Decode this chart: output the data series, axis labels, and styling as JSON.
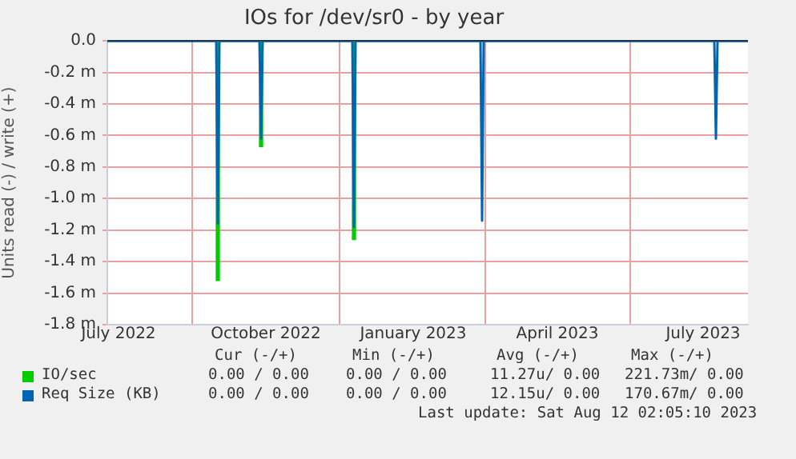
{
  "chart_data": {
    "type": "line",
    "title": "IOs for /dev/sr0 - by year",
    "ylabel": "Units read (-) / write (+)",
    "x": [
      "2022-06-24",
      "2022-08-31",
      "2022-09-01",
      "2022-09-02",
      "2022-09-27",
      "2022-09-28",
      "2022-09-29",
      "2022-11-24",
      "2022-11-25",
      "2022-11-26",
      "2023-02-12",
      "2023-02-13",
      "2023-02-14",
      "2023-07-08",
      "2023-07-09",
      "2023-07-10",
      "2023-07-29"
    ],
    "series": [
      {
        "name": "IO/sec",
        "type": "bar",
        "color": "#00cc00",
        "values": [
          null,
          null,
          -1.52,
          null,
          null,
          -0.67,
          null,
          null,
          -1.26,
          null,
          null,
          null,
          null,
          null,
          null,
          null,
          null
        ]
      },
      {
        "name": "Req Size (KB)",
        "color": "#0066b3",
        "values": [
          0,
          0,
          -1.16,
          0,
          0,
          -0.62,
          0,
          0,
          -1.18,
          0,
          0,
          -1.14,
          0,
          0,
          -0.62,
          0,
          0
        ]
      }
    ],
    "xlim": [
      "2022-06-24",
      "2023-07-29"
    ],
    "xticks": [
      {
        "value": "2022-07-01",
        "label": "July 2022"
      },
      {
        "value": "2022-10-01",
        "label": "October 2022"
      },
      {
        "value": "2023-01-01",
        "label": "January 2023"
      },
      {
        "value": "2023-04-01",
        "label": "April 2023"
      },
      {
        "value": "2023-07-01",
        "label": "July 2023"
      }
    ],
    "ylim": [
      -1.8,
      0
    ],
    "yticks": [
      {
        "value": -1.8,
        "label": "-1.8 m"
      },
      {
        "value": -1.6,
        "label": "-1.6 m"
      },
      {
        "value": -1.4,
        "label": "-1.4 m"
      },
      {
        "value": -1.2,
        "label": "-1.2 m"
      },
      {
        "value": -1.0,
        "label": "-1.0 m"
      },
      {
        "value": -0.8,
        "label": "-0.8 m"
      },
      {
        "value": -0.6,
        "label": "-0.6 m"
      },
      {
        "value": -0.4,
        "label": "-0.4 m"
      },
      {
        "value": -0.2,
        "label": "-0.2 m"
      },
      {
        "value": 0,
        "label": "0.0"
      }
    ],
    "grid": true,
    "legend": "bottom",
    "marker": "none",
    "line_style": "solid",
    "annotations": [
      "Cur (-/+)",
      "Min (-/+)",
      "Avg (-/+)",
      "Max (-/+)",
      "0.00 / 0.00",
      "0.00 / 0.00",
      "11.27u/ 0.00",
      "221.73m/ 0.00",
      "0.00 / 0.00",
      "0.00 / 0.00",
      "12.15u/ 0.00",
      "170.67m/ 0.00",
      "Last update: Sat Aug 12 02:05:10 2023"
    ]
  }
}
